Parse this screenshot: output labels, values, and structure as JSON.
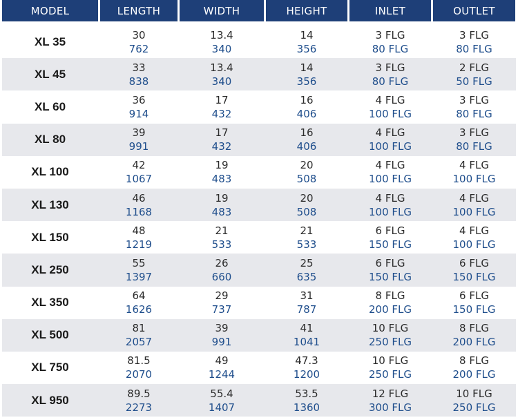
{
  "headers": [
    "MODEL",
    "LENGTH",
    "WIDTH",
    "HEIGHT",
    "INLET",
    "OUTLET"
  ],
  "rows": [
    {
      "model": "XL 35",
      "length": [
        "30",
        "762"
      ],
      "width": [
        "13.4",
        "340"
      ],
      "height": [
        "14",
        "356"
      ],
      "inlet": [
        "3 FLG",
        "80 FLG"
      ],
      "outlet": [
        "3 FLG",
        "80 FLG"
      ]
    },
    {
      "model": "XL 45",
      "length": [
        "33",
        "838"
      ],
      "width": [
        "13.4",
        "340"
      ],
      "height": [
        "14",
        "356"
      ],
      "inlet": [
        "3 FLG",
        "80 FLG"
      ],
      "outlet": [
        "2 FLG",
        "50 FLG"
      ]
    },
    {
      "model": "XL 60",
      "length": [
        "36",
        "914"
      ],
      "width": [
        "17",
        "432"
      ],
      "height": [
        "16",
        "406"
      ],
      "inlet": [
        "4 FLG",
        "100 FLG"
      ],
      "outlet": [
        "3 FLG",
        "80 FLG"
      ]
    },
    {
      "model": "XL 80",
      "length": [
        "39",
        "991"
      ],
      "width": [
        "17",
        "432"
      ],
      "height": [
        "16",
        "406"
      ],
      "inlet": [
        "4 FLG",
        "100 FLG"
      ],
      "outlet": [
        "3 FLG",
        "80 FLG"
      ]
    },
    {
      "model": "XL 100",
      "length": [
        "42",
        "1067"
      ],
      "width": [
        "19",
        "483"
      ],
      "height": [
        "20",
        "508"
      ],
      "inlet": [
        "4 FLG",
        "100 FLG"
      ],
      "outlet": [
        "4 FLG",
        "100 FLG"
      ]
    },
    {
      "model": "XL 130",
      "length": [
        "46",
        "1168"
      ],
      "width": [
        "19",
        "483"
      ],
      "height": [
        "20",
        "508"
      ],
      "inlet": [
        "4 FLG",
        "100 FLG"
      ],
      "outlet": [
        "4 FLG",
        "100 FLG"
      ]
    },
    {
      "model": "XL 150",
      "length": [
        "48",
        "1219"
      ],
      "width": [
        "21",
        "533"
      ],
      "height": [
        "21",
        "533"
      ],
      "inlet": [
        "6 FLG",
        "150 FLG"
      ],
      "outlet": [
        "4 FLG",
        "100 FLG"
      ]
    },
    {
      "model": "XL 250",
      "length": [
        "55",
        "1397"
      ],
      "width": [
        "26",
        "660"
      ],
      "height": [
        "25",
        "635"
      ],
      "inlet": [
        "6 FLG",
        "150 FLG"
      ],
      "outlet": [
        "6 FLG",
        "150 FLG"
      ]
    },
    {
      "model": "XL 350",
      "length": [
        "64",
        "1626"
      ],
      "width": [
        "29",
        "737"
      ],
      "height": [
        "31",
        "787"
      ],
      "inlet": [
        "8 FLG",
        "200 FLG"
      ],
      "outlet": [
        "6 FLG",
        "150 FLG"
      ]
    },
    {
      "model": "XL 500",
      "length": [
        "81",
        "2057"
      ],
      "width": [
        "39",
        "991"
      ],
      "height": [
        "41",
        "1041"
      ],
      "inlet": [
        "10 FLG",
        "250 FLG"
      ],
      "outlet": [
        "8 FLG",
        "200 FLG"
      ]
    },
    {
      "model": "XL 750",
      "length": [
        "81.5",
        "2070"
      ],
      "width": [
        "49",
        "1244"
      ],
      "height": [
        "47.3",
        "1200"
      ],
      "inlet": [
        "10 FLG",
        "250 FLG"
      ],
      "outlet": [
        "8 FLG",
        "200 FLG"
      ]
    },
    {
      "model": "XL 950",
      "length": [
        "89.5",
        "2273"
      ],
      "width": [
        "55.4",
        "1407"
      ],
      "height": [
        "53.5",
        "1360"
      ],
      "inlet": [
        "12 FLG",
        "300 FLG"
      ],
      "outlet": [
        "10 FLG",
        "250 FLG"
      ]
    }
  ],
  "colors": {
    "header_bg": "#1e3f78",
    "header_text": "#ffffff",
    "metric_text": "#1f4e8c",
    "imperial_text": "#2b2b2b",
    "row_shade": "#e7e8ec"
  }
}
